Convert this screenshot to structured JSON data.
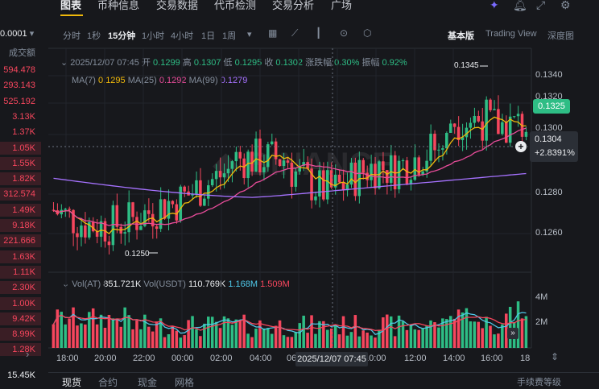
{
  "left": {
    "price": "0.0001",
    "price_suffix": "▾",
    "header": "成交额",
    "rows": [
      "594.478",
      "293.143",
      "525.192",
      "3.13K",
      "1.37K",
      "1.05K",
      "1.55K",
      "1.82K",
      "312.574",
      "1.49K",
      "9.18K",
      "221.666",
      "1.63K",
      "1.11K",
      "2.30K",
      "1.00K",
      "9.42K",
      "8.99K",
      "1.28K"
    ],
    "last": "15.45K"
  },
  "tabs": [
    "图表",
    "币种信息",
    "交易数据",
    "代币检测",
    "交易分析",
    "广场"
  ],
  "toolbar": {
    "intervals": [
      "分时",
      "1秒",
      "15分钟",
      "1小时",
      "4小时",
      "1日",
      "1周"
    ],
    "more": "▾",
    "modes": [
      "基本版",
      "Trading View",
      "深度图"
    ]
  },
  "ohlc": {
    "date": "2025/12/07 07:45",
    "open_label": "开",
    "open": "0.1299",
    "high_label": "高",
    "high": "0.1307",
    "low_label": "低",
    "low": "0.1295",
    "close_label": "收",
    "close": "0.1302",
    "chg_label": "涨跌幅",
    "chg": "0.30%",
    "amp_label": "振幅",
    "amp": "0.92%"
  },
  "ma": {
    "ma7_label": "MA(7)",
    "ma7": "0.1295",
    "ma25_label": "MA(25)",
    "ma25": "0.1292",
    "ma99_label": "MA(99)",
    "ma99": "0.1279"
  },
  "vol": {
    "vol_at_label": "Vol(AT)",
    "vol_at": "851.721K",
    "vol_usdt_label": "Vol(USDT)",
    "vol_usdt": "110.769K",
    "v1": "1.168M",
    "v2": "1.509M"
  },
  "price_axis": [
    "0.1340",
    "0.1320",
    "0.1300",
    "0.1280",
    "0.1260"
  ],
  "current_price": "0.1325",
  "crosshair": {
    "price": "0.1304",
    "pct": "+2.8391%",
    "time": "2025/12/07 07:45"
  },
  "max_label": "0.1345",
  "min_label": "0.1250",
  "vol_axis": [
    "4M",
    "2M"
  ],
  "time_axis": [
    "18:00",
    "20:00",
    "22:00",
    "00:00",
    "02:00",
    "04:00",
    "06:00",
    "08:00",
    "10:00",
    "12:00",
    "14:00",
    "16:00",
    "18"
  ],
  "bottom_tabs": [
    "现货",
    "合约",
    "现金",
    "网格"
  ],
  "bottom_right": "手续费等级",
  "colors": {
    "up": "#2ebd85",
    "down": "#f6465d",
    "ma7": "#f0b90b",
    "ma25": "#e84c9a",
    "ma99": "#a672ff",
    "bg": "#17181c"
  }
}
